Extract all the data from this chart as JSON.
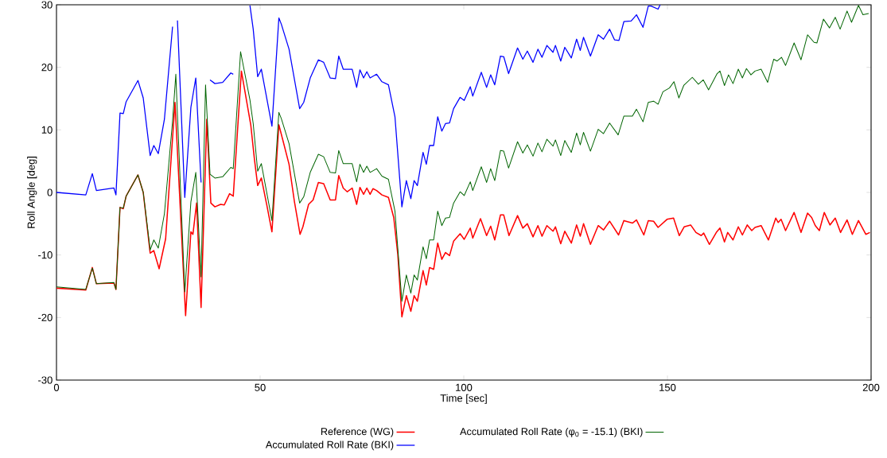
{
  "chart_data": {
    "type": "line",
    "xlabel": "Time [sec]",
    "ylabel": "Roll Angle [deg]",
    "xlim": [
      0,
      200
    ],
    "ylim": [
      -30,
      30
    ],
    "xticks": [
      0,
      50,
      100,
      150,
      200
    ],
    "yticks": [
      -30,
      -20,
      -10,
      0,
      10,
      20,
      30
    ],
    "grid": false,
    "legend": "bottom",
    "marker": "none",
    "line_style": "solid",
    "series": [
      {
        "name": "Reference (WG)",
        "color": "#ff0000",
        "x": [
          0,
          7.2,
          8.8,
          9.8,
          14.1,
          14.6,
          15.6,
          16.4,
          17.1,
          20.0,
          21.3,
          23.0,
          23.9,
          25.2,
          26.8,
          29.1,
          31.7,
          33.0,
          33.5,
          34.4,
          35.5,
          36.9,
          37.9,
          38.9,
          40.3,
          41.2,
          42.5,
          43.4,
          45.4,
          47.7,
          48.6,
          49.4,
          50.3,
          51.6,
          52.9,
          54.6,
          55.6,
          57.1,
          58.4,
          59.8,
          60.5,
          61.9,
          63.0,
          64.3,
          65.6,
          67.2,
          68.5,
          69.3,
          70.4,
          71.4,
          72.6,
          73.7,
          74.5,
          75.4,
          76.2,
          77.0,
          77.7,
          78.6,
          79.9,
          81.5,
          82.8,
          83.8,
          84.8,
          85.9,
          87.0,
          87.8,
          88.6,
          90.0,
          90.8,
          91.6,
          92.6,
          93.6,
          94.6,
          95.5,
          96.5,
          97.5,
          99.1,
          100.1,
          101.6,
          102.2,
          104.1,
          105.6,
          106.6,
          107.6,
          109.0,
          109.8,
          111.1,
          113.2,
          114.5,
          115.6,
          117.0,
          118.2,
          119.2,
          120.4,
          121.9,
          122.5,
          123.8,
          124.8,
          126.4,
          127.7,
          128.6,
          129.4,
          131.1,
          133.0,
          134.3,
          135.8,
          138.0,
          139.3,
          141.4,
          142.4,
          144.2,
          145.3,
          146.6,
          147.7,
          149.9,
          151.5,
          152.9,
          154.1,
          155.7,
          157.0,
          158.3,
          158.9,
          160.3,
          162.0,
          162.9,
          164.0,
          164.8,
          166.1,
          167.4,
          168.4,
          169.6,
          170.7,
          171.5,
          173.0,
          174.8,
          176.6,
          177.2,
          177.9,
          179.0,
          181.1,
          182.8,
          184.4,
          185.4,
          186.3,
          187.3,
          188.5,
          189.9,
          191.2,
          192.5,
          194.1,
          195.4,
          196.9,
          198.7,
          199.7
        ],
        "values": [
          -15.3,
          -15.6,
          -12.0,
          -14.6,
          -14.5,
          -15.5,
          -2.4,
          -2.6,
          -0.6,
          2.8,
          0.0,
          -9.7,
          -9.3,
          -12.2,
          -7.4,
          14.4,
          -19.7,
          -6.3,
          -6.7,
          -1.7,
          -18.4,
          11.7,
          -1.7,
          -2.3,
          -1.9,
          -2.0,
          -0.2,
          -0.6,
          19.4,
          10.8,
          5.3,
          1.1,
          2.3,
          -1.9,
          -6.3,
          10.8,
          8.3,
          4.5,
          -1.4,
          -6.7,
          -5.5,
          -1.9,
          -1.2,
          1.6,
          1.4,
          -1.2,
          -1.2,
          2.7,
          0.7,
          0.1,
          0.7,
          -1.9,
          0.8,
          -0.3,
          0.7,
          -0.3,
          0.6,
          0.3,
          -0.4,
          -0.8,
          -4.0,
          -9.9,
          -19.9,
          -16.5,
          -19.0,
          -16.5,
          -17.4,
          -12.5,
          -14.8,
          -12.0,
          -12.3,
          -8.1,
          -10.7,
          -9.6,
          -10.1,
          -7.8,
          -6.6,
          -7.5,
          -5.7,
          -7.3,
          -4.2,
          -6.9,
          -5.4,
          -7.6,
          -3.6,
          -3.6,
          -6.9,
          -3.7,
          -5.7,
          -5.0,
          -7.1,
          -5.3,
          -7.0,
          -5.3,
          -6.2,
          -5.5,
          -8.2,
          -6.2,
          -8.1,
          -5.2,
          -7.0,
          -5.0,
          -8.3,
          -5.3,
          -6.0,
          -4.6,
          -6.8,
          -4.5,
          -4.9,
          -4.4,
          -6.8,
          -4.5,
          -4.6,
          -5.6,
          -4.3,
          -4.1,
          -6.9,
          -5.5,
          -5.2,
          -6.4,
          -6.9,
          -6.5,
          -8.3,
          -6.4,
          -5.7,
          -7.9,
          -6.4,
          -7.6,
          -5.5,
          -6.8,
          -5.2,
          -6.1,
          -5.6,
          -5.3,
          -7.6,
          -4.1,
          -4.8,
          -4.3,
          -6.1,
          -3.2,
          -6.4,
          -3.3,
          -4.0,
          -5.3,
          -6.1,
          -3.2,
          -5.2,
          -4.1,
          -6.4,
          -4.4,
          -6.7,
          -4.5,
          -6.7,
          -6.4
        ]
      },
      {
        "name": "Accumulated Roll Rate (BKI)",
        "color": "#0000ff",
        "x": [
          0,
          7.2,
          8.8,
          9.8,
          14.1,
          14.6,
          15.6,
          16.4,
          17.1,
          20.0,
          21.3,
          23.0,
          23.9,
          25.0,
          26.5,
          28.5,
          29.3,
          29.7,
          31.5,
          33.0,
          34.2,
          35.5,
          36.6,
          37.7,
          38.9,
          40.8,
          42.8,
          43.4,
          45.2,
          47.5,
          48.3,
          49.4,
          50.3,
          52.9,
          54.6,
          55.2,
          57.1,
          59.7,
          60.7,
          62.3,
          64.3,
          65.6,
          67.2,
          68.5,
          69.3,
          70.4,
          72.6,
          73.7,
          74.5,
          75.4,
          76.2,
          77.0,
          78.6,
          79.9,
          81.5,
          83.1,
          84.8,
          85.9,
          87.0,
          87.8,
          88.6,
          90.0,
          90.8,
          91.6,
          92.6,
          93.6,
          94.6,
          95.5,
          96.5,
          97.5,
          99.1,
          100.1,
          101.6,
          102.2,
          104.3,
          105.6,
          106.6,
          107.6,
          109.0,
          109.8,
          111.0,
          113.2,
          114.5,
          115.6,
          117.0,
          118.2,
          119.2,
          120.4,
          121.9,
          122.5,
          123.8,
          124.8,
          126.4,
          127.7,
          128.6,
          129.4,
          131.1,
          133.0,
          134.3,
          135.8,
          137.0,
          138.1,
          139.3,
          141.1,
          142.4,
          144.0,
          145.3,
          146.0,
          147.7,
          148.2
        ],
        "values": [
          0.0,
          -0.4,
          3.0,
          0.3,
          0.7,
          -0.4,
          12.7,
          12.6,
          14.5,
          17.9,
          15.1,
          5.9,
          7.5,
          6.2,
          11.7,
          26.5,
          null,
          27.5,
          -0.8,
          13.6,
          18.3,
          1.6,
          null,
          18.0,
          17.4,
          17.6,
          19.1,
          18.9,
          null,
          29.9,
          26.1,
          18.5,
          19.7,
          10.6,
          27.9,
          26.9,
          22.9,
          13.4,
          14.4,
          18.3,
          21.2,
          20.8,
          18.3,
          18.2,
          21.8,
          19.7,
          19.7,
          16.8,
          19.6,
          18.3,
          19.3,
          18.3,
          18.9,
          17.7,
          17.2,
          12.1,
          -2.3,
          1.9,
          -1.0,
          1.9,
          1.1,
          6.4,
          4.5,
          7.5,
          7.5,
          12.1,
          9.8,
          11.0,
          11.1,
          13.4,
          15.2,
          14.7,
          16.9,
          15.4,
          19.2,
          16.8,
          18.8,
          17.2,
          21.8,
          21.7,
          19.0,
          23.1,
          21.3,
          22.6,
          20.8,
          22.9,
          21.6,
          23.5,
          22.4,
          23.5,
          21.0,
          23.2,
          21.5,
          24.5,
          22.7,
          24.8,
          21.8,
          25.2,
          24.5,
          26.1,
          24.4,
          24.3,
          27.3,
          27.4,
          28.4,
          26.4,
          29.8,
          29.8,
          29.3,
          30.0
        ]
      },
      {
        "name": "Accumulated Roll Rate (φ$_{0}$ = -15.1) (BKI)",
        "color": "#006400",
        "x": [
          0,
          7.2,
          8.8,
          9.8,
          14.1,
          14.6,
          15.6,
          16.4,
          17.1,
          20.0,
          21.3,
          23.0,
          23.9,
          25.0,
          26.5,
          28.5,
          29.3,
          29.7,
          31.5,
          33.0,
          34.2,
          35.5,
          36.6,
          37.7,
          38.9,
          40.8,
          42.8,
          43.4,
          45.2,
          47.5,
          48.3,
          49.4,
          50.3,
          52.9,
          54.6,
          55.2,
          57.1,
          59.7,
          60.7,
          62.3,
          64.3,
          65.6,
          67.2,
          68.5,
          69.3,
          70.4,
          72.6,
          73.7,
          74.5,
          75.4,
          76.2,
          77.0,
          78.6,
          79.9,
          81.5,
          83.1,
          84.8,
          85.9,
          87.0,
          87.8,
          88.6,
          90.0,
          90.8,
          91.6,
          92.6,
          93.6,
          94.6,
          95.5,
          96.5,
          97.5,
          99.1,
          100.1,
          101.6,
          102.2,
          104.3,
          105.6,
          106.6,
          107.6,
          109.0,
          109.8,
          111.0,
          113.2,
          114.5,
          115.6,
          117.0,
          118.2,
          119.2,
          120.4,
          121.9,
          122.5,
          123.8,
          124.8,
          126.4,
          127.7,
          128.6,
          129.4,
          131.1,
          133.0,
          134.3,
          135.8,
          137.9,
          139.3,
          141.4,
          142.4,
          144.0,
          145.3,
          146.6,
          147.7,
          148.9,
          150.5,
          151.6,
          152.8,
          154.0,
          156.1,
          157.6,
          158.8,
          160.1,
          162.2,
          162.9,
          164.0,
          165.0,
          166.1,
          167.4,
          168.4,
          169.4,
          170.5,
          171.5,
          173.0,
          174.6,
          176.1,
          176.9,
          178.0,
          179.0,
          181.1,
          182.8,
          184.4,
          186.0,
          186.7,
          188.3,
          189.8,
          191.2,
          192.4,
          194.1,
          195.2,
          196.9,
          198.0,
          199.4
        ],
        "values": [
          -15.1,
          -15.5,
          -12.1,
          -14.6,
          -14.4,
          -15.5,
          -2.4,
          -2.5,
          -0.6,
          2.8,
          0.0,
          -9.2,
          -7.6,
          -8.9,
          -3.4,
          11.4,
          18.9,
          12.4,
          -15.9,
          -1.5,
          3.2,
          -13.5,
          17.2,
          2.9,
          2.3,
          2.5,
          4.0,
          3.8,
          22.5,
          14.8,
          11.0,
          3.4,
          4.6,
          -4.5,
          12.8,
          11.8,
          7.8,
          -1.7,
          -0.7,
          3.2,
          6.1,
          5.7,
          3.2,
          3.1,
          6.7,
          4.6,
          4.6,
          1.7,
          4.5,
          3.2,
          4.2,
          3.2,
          3.8,
          2.6,
          2.1,
          -3.0,
          -17.4,
          -13.2,
          -16.1,
          -13.2,
          -14.0,
          -8.7,
          -10.6,
          -7.6,
          -7.6,
          -3.0,
          -5.3,
          -4.1,
          -4.0,
          -1.7,
          0.1,
          -0.5,
          1.7,
          0.3,
          4.1,
          1.6,
          3.8,
          1.9,
          6.7,
          6.6,
          3.9,
          8.1,
          6.3,
          7.6,
          5.8,
          7.9,
          6.5,
          8.5,
          7.4,
          8.4,
          5.9,
          8.3,
          6.4,
          9.5,
          7.6,
          9.6,
          6.6,
          10.1,
          9.4,
          11.1,
          9.2,
          12.2,
          12.2,
          13.3,
          11.3,
          14.4,
          14.6,
          14.1,
          16.1,
          16.7,
          17.7,
          15.1,
          17.1,
          18.4,
          17.3,
          18.0,
          16.4,
          19.0,
          19.4,
          17.1,
          18.8,
          17.4,
          19.7,
          18.3,
          19.8,
          18.8,
          19.4,
          19.7,
          17.6,
          21.3,
          21.0,
          21.6,
          20.3,
          23.9,
          21.2,
          25.2,
          24.0,
          23.9,
          27.7,
          26.3,
          28.0,
          26.1,
          29.0,
          27.2,
          29.9,
          28.4,
          28.6
        ]
      }
    ]
  }
}
